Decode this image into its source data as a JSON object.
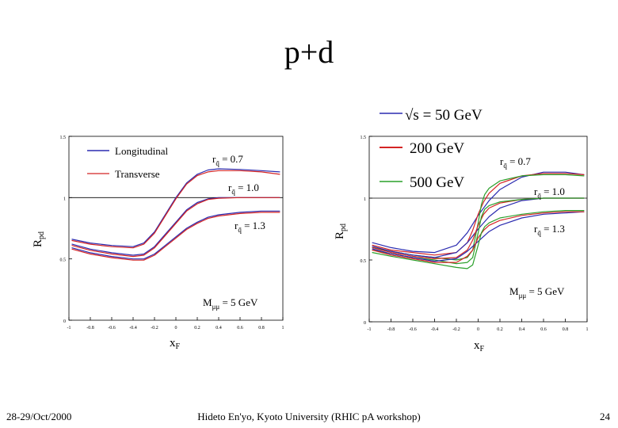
{
  "slide": {
    "title": "p+d",
    "footer_left": "28-29/Oct/2000",
    "footer_center": "Hideto En'yo, Kyoto University (RHIC pA workshop)",
    "footer_right": "24"
  },
  "colors": {
    "blue": "#2b2bb0",
    "red": "#d42525",
    "green": "#2aa02a"
  },
  "chart_data": [
    {
      "type": "line",
      "xlim": [
        -1,
        1
      ],
      "ylim": [
        0,
        1.5
      ],
      "x_ticks": [
        "-1",
        "-0.8",
        "-0.6",
        "-0.4",
        "-0.2",
        "0",
        "0.2",
        "0.4",
        "0.6",
        "0.8",
        "1"
      ],
      "y_ticks": [
        "0",
        "0.5",
        "1",
        "1.5"
      ],
      "xlabel": "x",
      "xlabel_sub": "F",
      "ylabel": "R",
      "ylabel_sub": "pd",
      "reference_line": 1.0,
      "legend": [
        {
          "name": "Longitudinal",
          "color": "#2b2bb0"
        },
        {
          "name": "Transverse",
          "color": "#d42525"
        }
      ],
      "annotations": {
        "r07": {
          "main": "r",
          "sub": "q̄",
          "rest": " = 0.7"
        },
        "r10": {
          "main": "r",
          "sub": "q̄",
          "rest": " = 1.0"
        },
        "r13": {
          "main": "r",
          "sub": "q̄",
          "rest": " = 1.3"
        },
        "mass": {
          "main": "M",
          "sub": "μμ",
          "rest": " = 5 GeV"
        }
      },
      "series": [
        {
          "color": "#2b2bb0",
          "x": [
            -0.97,
            -0.8,
            -0.6,
            -0.4,
            -0.3,
            -0.2,
            -0.1,
            0,
            0.1,
            0.2,
            0.3,
            0.4,
            0.6,
            0.8,
            0.97
          ],
          "y": [
            0.66,
            0.63,
            0.61,
            0.6,
            0.63,
            0.72,
            0.86,
            1.0,
            1.12,
            1.19,
            1.225,
            1.235,
            1.23,
            1.22,
            1.21
          ]
        },
        {
          "color": "#d42525",
          "x": [
            -0.97,
            -0.8,
            -0.6,
            -0.4,
            -0.3,
            -0.2,
            -0.1,
            0,
            0.1,
            0.2,
            0.3,
            0.4,
            0.6,
            0.8,
            0.97
          ],
          "y": [
            0.65,
            0.62,
            0.6,
            0.59,
            0.62,
            0.71,
            0.85,
            0.99,
            1.11,
            1.18,
            1.21,
            1.22,
            1.22,
            1.21,
            1.19
          ]
        },
        {
          "color": "#2b2bb0",
          "x": [
            -0.97,
            -0.8,
            -0.6,
            -0.4,
            -0.3,
            -0.2,
            -0.1,
            0,
            0.1,
            0.2,
            0.3,
            0.4,
            0.6,
            0.8,
            0.97
          ],
          "y": [
            0.62,
            0.58,
            0.55,
            0.53,
            0.54,
            0.6,
            0.7,
            0.8,
            0.9,
            0.96,
            0.99,
            1.0,
            1.0,
            1.0,
            1.0
          ]
        },
        {
          "color": "#d42525",
          "x": [
            -0.97,
            -0.8,
            -0.6,
            -0.4,
            -0.3,
            -0.2,
            -0.1,
            0,
            0.1,
            0.2,
            0.3,
            0.4,
            0.6,
            0.8,
            0.97
          ],
          "y": [
            0.61,
            0.57,
            0.54,
            0.52,
            0.53,
            0.59,
            0.69,
            0.79,
            0.89,
            0.95,
            0.985,
            0.995,
            1.0,
            1.0,
            1.0
          ]
        },
        {
          "color": "#2b2bb0",
          "x": [
            -0.97,
            -0.8,
            -0.6,
            -0.4,
            -0.3,
            -0.2,
            -0.1,
            0,
            0.1,
            0.2,
            0.3,
            0.4,
            0.6,
            0.8,
            0.97
          ],
          "y": [
            0.59,
            0.55,
            0.52,
            0.5,
            0.5,
            0.54,
            0.61,
            0.68,
            0.75,
            0.8,
            0.84,
            0.86,
            0.88,
            0.89,
            0.89
          ]
        },
        {
          "color": "#d42525",
          "x": [
            -0.97,
            -0.8,
            -0.6,
            -0.4,
            -0.3,
            -0.2,
            -0.1,
            0,
            0.1,
            0.2,
            0.3,
            0.4,
            0.6,
            0.8,
            0.97
          ],
          "y": [
            0.58,
            0.54,
            0.51,
            0.49,
            0.49,
            0.53,
            0.6,
            0.67,
            0.74,
            0.79,
            0.83,
            0.85,
            0.87,
            0.88,
            0.88
          ]
        }
      ]
    },
    {
      "type": "line",
      "xlim": [
        -1,
        1
      ],
      "ylim": [
        0,
        1.5
      ],
      "x_ticks": [
        "-1",
        "-0.8",
        "-0.6",
        "-0.4",
        "-0.2",
        "0",
        "0.2",
        "0.4",
        "0.6",
        "0.8",
        "1"
      ],
      "y_ticks": [
        "0",
        "0.5",
        "1",
        "1.5"
      ],
      "xlabel": "x",
      "xlabel_sub": "F",
      "ylabel": "R",
      "ylabel_sub": "pd",
      "reference_line": 1.0,
      "legend": [
        {
          "name": "√s  =  50 GeV",
          "color": "#2b2bb0"
        },
        {
          "name": "200 GeV",
          "color": "#d42525"
        },
        {
          "name": "500 GeV",
          "color": "#2aa02a"
        }
      ],
      "annotations": {
        "r07": {
          "main": "r",
          "sub": "q̄",
          "rest": " = 0.7"
        },
        "r10": {
          "main": "r",
          "sub": "q̄",
          "rest": " = 1.0"
        },
        "r13": {
          "main": "r",
          "sub": "q̄",
          "rest": " = 1.3"
        },
        "mass": {
          "main": "M",
          "sub": "μμ",
          "rest": " = 5 GeV"
        }
      },
      "series": [
        {
          "color": "#2b2bb0",
          "x": [
            -0.97,
            -0.8,
            -0.6,
            -0.4,
            -0.2,
            -0.1,
            0,
            0.1,
            0.2,
            0.4,
            0.6,
            0.8,
            0.97
          ],
          "y": [
            0.64,
            0.6,
            0.57,
            0.56,
            0.62,
            0.72,
            0.86,
            0.98,
            1.07,
            1.17,
            1.21,
            1.21,
            1.19
          ]
        },
        {
          "color": "#d42525",
          "x": [
            -0.97,
            -0.8,
            -0.6,
            -0.4,
            -0.2,
            -0.1,
            -0.05,
            0,
            0.05,
            0.1,
            0.2,
            0.4,
            0.6,
            0.8,
            0.97
          ],
          "y": [
            0.62,
            0.58,
            0.56,
            0.54,
            0.56,
            0.64,
            0.74,
            0.87,
            0.97,
            1.04,
            1.12,
            1.18,
            1.2,
            1.2,
            1.19
          ]
        },
        {
          "color": "#2aa02a",
          "x": [
            -0.97,
            -0.8,
            -0.6,
            -0.4,
            -0.2,
            -0.1,
            -0.05,
            0,
            0.03,
            0.06,
            0.1,
            0.2,
            0.4,
            0.6,
            0.8,
            0.97
          ],
          "y": [
            0.6,
            0.57,
            0.54,
            0.52,
            0.5,
            0.52,
            0.58,
            0.8,
            0.95,
            1.03,
            1.08,
            1.14,
            1.18,
            1.19,
            1.19,
            1.18
          ]
        },
        {
          "color": "#2b2bb0",
          "x": [
            -0.97,
            -0.8,
            -0.6,
            -0.4,
            -0.2,
            -0.1,
            0,
            0.1,
            0.2,
            0.4,
            0.6,
            0.8,
            0.97
          ],
          "y": [
            0.61,
            0.57,
            0.54,
            0.52,
            0.56,
            0.64,
            0.75,
            0.85,
            0.92,
            0.98,
            1.0,
            1.0,
            1.0
          ]
        },
        {
          "color": "#d42525",
          "x": [
            -0.97,
            -0.8,
            -0.6,
            -0.4,
            -0.2,
            -0.1,
            -0.05,
            0,
            0.05,
            0.1,
            0.2,
            0.4,
            0.6,
            0.8,
            0.97
          ],
          "y": [
            0.6,
            0.56,
            0.53,
            0.51,
            0.52,
            0.58,
            0.66,
            0.78,
            0.87,
            0.92,
            0.96,
            0.99,
            1.0,
            1.0,
            1.0
          ]
        },
        {
          "color": "#2aa02a",
          "x": [
            -0.97,
            -0.8,
            -0.6,
            -0.4,
            -0.2,
            -0.1,
            -0.05,
            0,
            0.03,
            0.06,
            0.1,
            0.2,
            0.4,
            0.6,
            0.8,
            0.97
          ],
          "y": [
            0.58,
            0.55,
            0.52,
            0.5,
            0.47,
            0.48,
            0.52,
            0.72,
            0.85,
            0.91,
            0.94,
            0.97,
            0.99,
            1.0,
            1.0,
            1.0
          ]
        },
        {
          "color": "#2b2bb0",
          "x": [
            -0.97,
            -0.8,
            -0.6,
            -0.4,
            -0.2,
            -0.1,
            0,
            0.1,
            0.2,
            0.4,
            0.6,
            0.8,
            0.97
          ],
          "y": [
            0.59,
            0.55,
            0.52,
            0.49,
            0.51,
            0.57,
            0.65,
            0.73,
            0.78,
            0.84,
            0.87,
            0.88,
            0.89
          ]
        },
        {
          "color": "#d42525",
          "x": [
            -0.97,
            -0.8,
            -0.6,
            -0.4,
            -0.2,
            -0.1,
            -0.05,
            0,
            0.05,
            0.1,
            0.2,
            0.4,
            0.6,
            0.8,
            0.97
          ],
          "y": [
            0.58,
            0.54,
            0.51,
            0.48,
            0.48,
            0.53,
            0.58,
            0.68,
            0.74,
            0.78,
            0.82,
            0.86,
            0.88,
            0.89,
            0.89
          ]
        },
        {
          "color": "#2aa02a",
          "x": [
            -0.97,
            -0.8,
            -0.6,
            -0.4,
            -0.2,
            -0.1,
            -0.05,
            0,
            0.03,
            0.06,
            0.1,
            0.2,
            0.4,
            0.6,
            0.8,
            0.97
          ],
          "y": [
            0.56,
            0.53,
            0.5,
            0.47,
            0.44,
            0.43,
            0.46,
            0.62,
            0.72,
            0.77,
            0.8,
            0.84,
            0.87,
            0.89,
            0.9,
            0.9
          ]
        }
      ]
    }
  ]
}
